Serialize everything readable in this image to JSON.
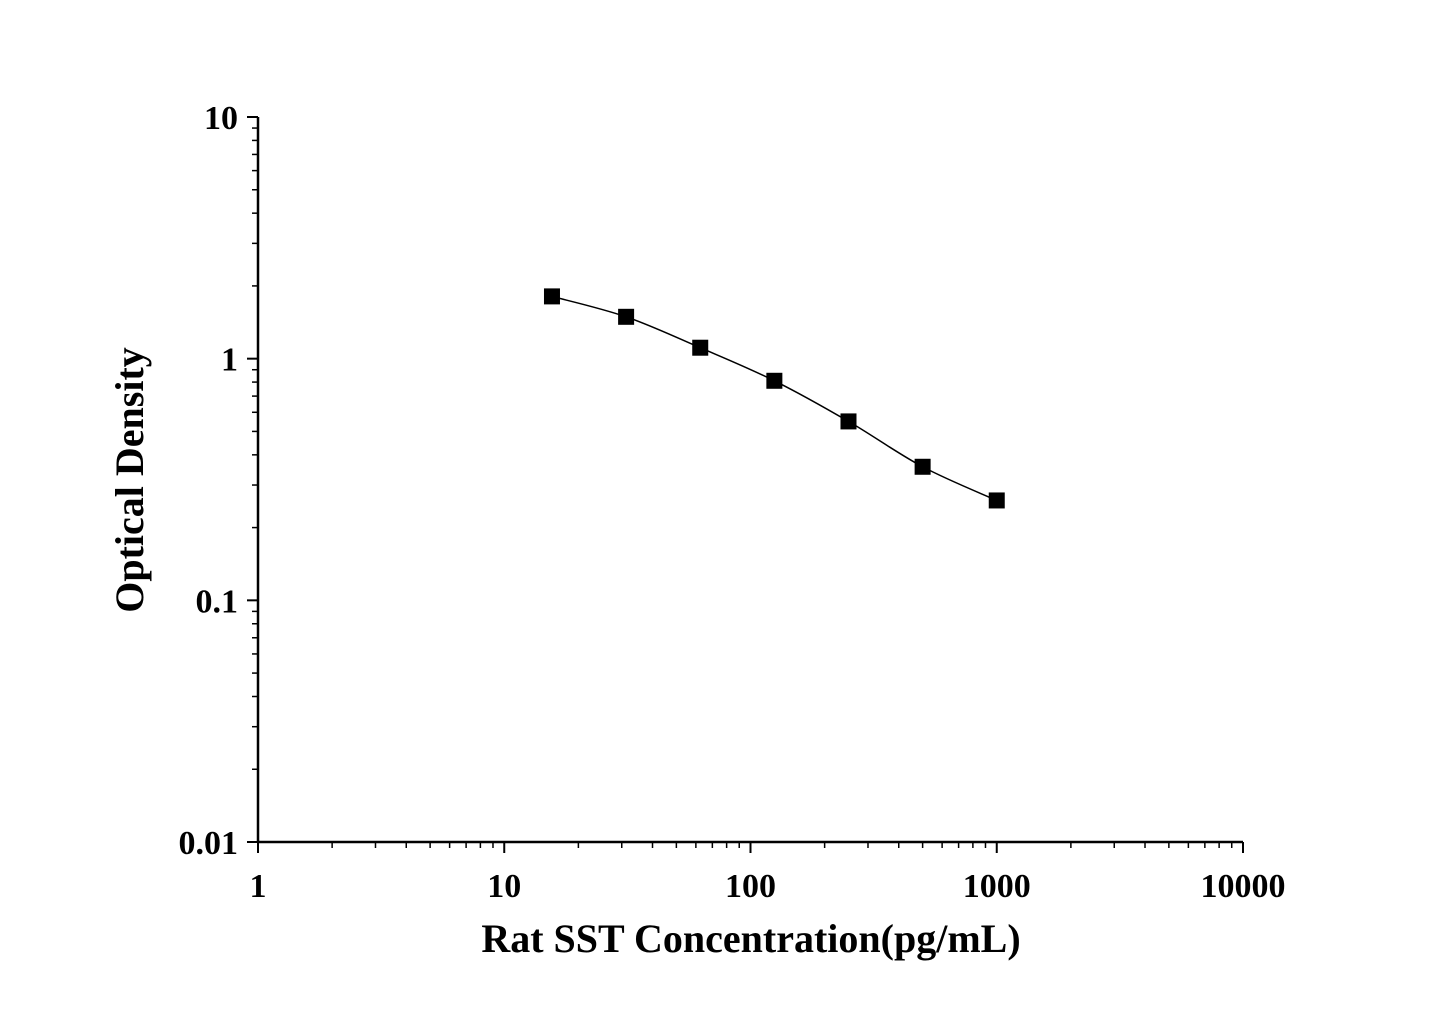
{
  "chart_data": {
    "type": "line",
    "title": "",
    "xlabel": "Rat SST Concentration(pg/mL)",
    "ylabel": "Optical Density",
    "x_scale": "log",
    "y_scale": "log",
    "xlim": [
      1,
      10000
    ],
    "ylim": [
      0.01,
      10
    ],
    "x_ticks": [
      "1",
      "10",
      "100",
      "1000",
      "10000"
    ],
    "y_ticks": [
      "0.01",
      "0.1",
      "1",
      "10"
    ],
    "grid": false,
    "marker": "square",
    "color": "#000000",
    "series": [
      {
        "x": [
          15.625,
          31.25,
          62.5,
          125,
          250,
          500,
          1000
        ],
        "y": [
          1.81,
          1.49,
          1.11,
          0.81,
          0.55,
          0.357,
          0.259
        ]
      }
    ]
  }
}
